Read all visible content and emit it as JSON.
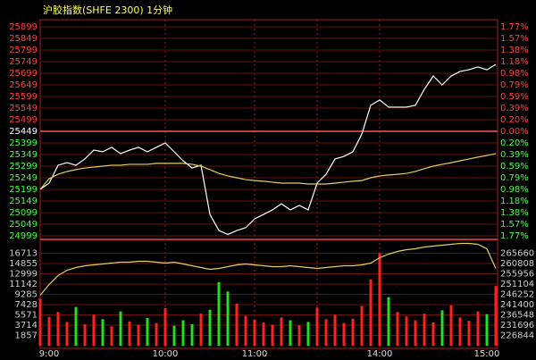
{
  "title": "沪胶指数(SHFE 2300) 1分钟",
  "chart_data": [
    {
      "type": "line",
      "baseline": 25449,
      "grid": true,
      "up_color": "#ff4040",
      "down_color": "#40ff40",
      "flat_color": "#ffffff",
      "ylim": [
        24999,
        25899
      ],
      "yticks": [
        25899,
        25849,
        25799,
        25749,
        25699,
        25649,
        25599,
        25549,
        25499,
        25449,
        25399,
        25349,
        25299,
        25249,
        25199,
        25149,
        25099,
        25049,
        24999
      ],
      "y2lim": [
        -1.77,
        1.77
      ],
      "y2ticks": [
        {
          "value": 1.77,
          "label": "1.77%"
        },
        {
          "value": 1.57,
          "label": "1.57%"
        },
        {
          "value": 1.38,
          "label": "1.38%"
        },
        {
          "value": 1.18,
          "label": "1.18%"
        },
        {
          "value": 0.98,
          "label": "0.98%"
        },
        {
          "value": 0.79,
          "label": "0.79%"
        },
        {
          "value": 0.59,
          "label": "0.59%"
        },
        {
          "value": 0.39,
          "label": "0.39%"
        },
        {
          "value": 0.2,
          "label": "0.20%"
        },
        {
          "value": 0,
          "label": "0.00%"
        },
        {
          "value": -0.2,
          "label": "0.20%"
        },
        {
          "value": -0.39,
          "label": "0.39%"
        },
        {
          "value": -0.59,
          "label": "0.59%"
        },
        {
          "value": -0.79,
          "label": "0.79%"
        },
        {
          "value": -0.98,
          "label": "0.98%"
        },
        {
          "value": -1.18,
          "label": "1.18%"
        },
        {
          "value": -1.38,
          "label": "1.38%"
        },
        {
          "value": -1.57,
          "label": "1.57%"
        },
        {
          "value": -1.77,
          "label": "1.77%"
        }
      ],
      "series": [
        {
          "color": "#ffffff",
          "values": [
            25199,
            25226,
            25303,
            25314,
            25303,
            25330,
            25368,
            25361,
            25380,
            25353,
            25368,
            25380,
            25361,
            25380,
            25399,
            25361,
            25322,
            25291,
            25303,
            25091,
            25022,
            25005,
            25022,
            25034,
            25072,
            25091,
            25111,
            25137,
            25111,
            25130,
            25111,
            25226,
            25264,
            25330,
            25341,
            25361,
            25437,
            25561,
            25584,
            25553,
            25553,
            25553,
            25561,
            25630,
            25687,
            25649,
            25687,
            25707,
            25714,
            25726,
            25714,
            25737
          ]
        },
        {
          "color": "#e0d060",
          "values": [
            25199,
            25245,
            25264,
            25276,
            25284,
            25291,
            25295,
            25299,
            25303,
            25303,
            25307,
            25307,
            25307,
            25311,
            25311,
            25311,
            25311,
            25307,
            25299,
            25284,
            25268,
            25257,
            25249,
            25241,
            25237,
            25234,
            25230,
            25226,
            25226,
            25226,
            25222,
            25222,
            25222,
            25226,
            25230,
            25234,
            25237,
            25249,
            25257,
            25261,
            25264,
            25268,
            25276,
            25288,
            25299,
            25307,
            25314,
            25322,
            25330,
            25338,
            25345,
            25353
          ]
        }
      ]
    },
    {
      "type": "bar",
      "grid": true,
      "up_color": "#ff2020",
      "down_color": "#20e020",
      "categories": [
        "9:00",
        null,
        null,
        null,
        null,
        null,
        null,
        null,
        null,
        null,
        null,
        null,
        null,
        null,
        "10:00",
        null,
        null,
        null,
        null,
        null,
        null,
        null,
        null,
        null,
        "11:00",
        null,
        null,
        null,
        null,
        null,
        null,
        null,
        null,
        null,
        null,
        null,
        null,
        null,
        "14:00",
        null,
        null,
        null,
        null,
        null,
        null,
        null,
        null,
        null,
        null,
        null,
        null,
        "15:00"
      ],
      "ylim": [
        0,
        18570
      ],
      "yticks": [
        16713,
        14855,
        12999,
        11142,
        9285,
        7428,
        5571,
        3714,
        1857
      ],
      "y2lim": [
        221992,
        270512
      ],
      "y2ticks": [
        265660,
        260808,
        255956,
        251104,
        246252,
        241400,
        236548,
        231696,
        226844
      ],
      "values": [
        8500,
        5200,
        6100,
        4300,
        7000,
        3900,
        5600,
        4800,
        3500,
        6200,
        4400,
        3800,
        5000,
        4100,
        6800,
        3600,
        4600,
        3900,
        5800,
        6500,
        11500,
        9800,
        7600,
        5400,
        4700,
        4200,
        3800,
        5100,
        4600,
        3700,
        4300,
        6900,
        4800,
        5600,
        4100,
        4900,
        7200,
        12000,
        16713,
        8800,
        6100,
        5300,
        4600,
        5800,
        4200,
        6400,
        7300,
        5100,
        4500,
        6200,
        5700,
        10800
      ],
      "series": [
        {
          "axis": "y2",
          "color": "#e0d060",
          "values": [
            245830,
            250892,
            255111,
            257643,
            258908,
            259752,
            260174,
            260596,
            261018,
            261440,
            261440,
            261862,
            261862,
            261440,
            261018,
            261440,
            260596,
            259752,
            258908,
            258065,
            258487,
            259330,
            260174,
            260596,
            260174,
            259752,
            259330,
            259330,
            259752,
            259330,
            258908,
            258487,
            258908,
            259330,
            259752,
            259752,
            260174,
            261018,
            263549,
            265237,
            266503,
            267346,
            267768,
            268612,
            269034,
            269456,
            269878,
            270300,
            270300,
            269878,
            267768,
            258487
          ]
        }
      ]
    }
  ]
}
